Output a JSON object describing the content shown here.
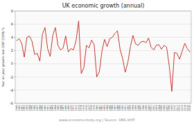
{
  "chart_data": {
    "type": "line",
    "title": "UK economic growth (annual)",
    "y_label": "Year on year growth real GDP (CVM) %",
    "annotations": [
      "www.economicshelp.org | Source: ONS IHYP"
    ],
    "x": [
      1949,
      1950,
      1951,
      1952,
      1953,
      1954,
      1955,
      1956,
      1957,
      1958,
      1959,
      1960,
      1961,
      1962,
      1963,
      1964,
      1965,
      1966,
      1967,
      1968,
      1969,
      1970,
      1971,
      1972,
      1973,
      1974,
      1975,
      1976,
      1977,
      1978,
      1979,
      1980,
      1981,
      1982,
      1983,
      1984,
      1985,
      1986,
      1987,
      1988,
      1989,
      1990,
      1991,
      1992,
      1993,
      1994,
      1995,
      1996,
      1997,
      1998,
      1999,
      2000,
      2001,
      2002,
      2003,
      2004,
      2005,
      2006,
      2007,
      2008,
      2009,
      2010,
      2011,
      2012,
      2013,
      2014,
      2015,
      2016
    ],
    "values": [
      3.5,
      3.8,
      3.1,
      1.0,
      4.0,
      4.2,
      3.4,
      1.4,
      1.6,
      0.4,
      4.5,
      5.5,
      2.3,
      1.1,
      4.3,
      5.5,
      2.8,
      2.1,
      2.4,
      4.2,
      1.8,
      2.3,
      2.1,
      3.5,
      6.5,
      -1.5,
      -0.6,
      2.8,
      2.4,
      3.6,
      2.9,
      -2.0,
      -1.2,
      1.9,
      3.7,
      2.6,
      3.8,
      4.0,
      4.6,
      5.0,
      2.2,
      0.8,
      -1.3,
      0.2,
      2.6,
      4.3,
      3.0,
      2.8,
      3.3,
      3.4,
      3.2,
      3.9,
      2.5,
      2.1,
      2.8,
      2.9,
      2.2,
      2.8,
      2.5,
      -0.3,
      -4.2,
      1.7,
      1.6,
      0.7,
      1.9,
      3.1,
      2.3,
      1.8
    ],
    "color": "#c0392b",
    "xlim": [
      1948.5,
      2016.5
    ],
    "xticks": [
      1949,
      1950,
      1951,
      1952,
      1953,
      1954,
      1955,
      1956,
      1957,
      1958,
      1959,
      1960,
      1961,
      1962,
      1963,
      1964,
      1965,
      1966,
      1967,
      1968,
      1969,
      1970,
      1971,
      1972,
      1973,
      1974,
      1975,
      1976,
      1977,
      1978,
      1979,
      1980,
      1981,
      1982,
      1983,
      1984,
      1985,
      1986,
      1987,
      1988,
      1989,
      1990,
      1991,
      1992,
      1993,
      1994,
      1995,
      1996,
      1997,
      1998,
      1999,
      2000,
      2001,
      2002,
      2003,
      2004,
      2005,
      2006,
      2007,
      2008,
      2009,
      2010,
      2011,
      2012,
      2013,
      2014,
      2015,
      2016
    ],
    "ylim": [
      -6,
      8
    ],
    "yticks": [
      -6,
      -4,
      -2,
      0,
      2,
      4,
      6,
      8
    ],
    "grid": true
  }
}
